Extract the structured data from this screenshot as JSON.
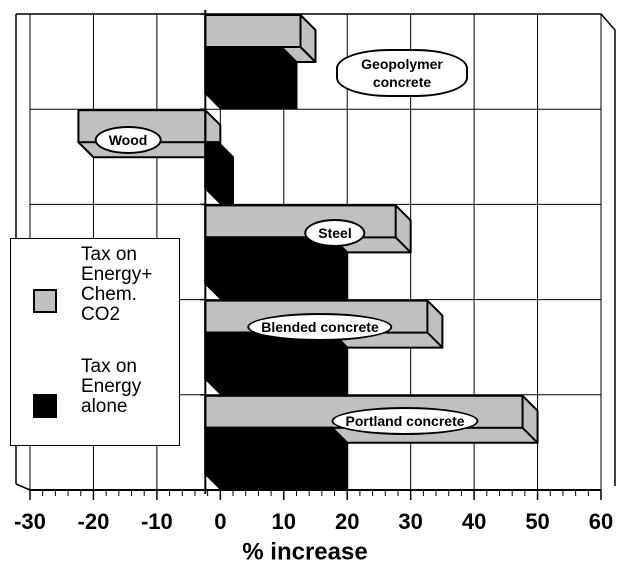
{
  "chart_data": {
    "type": "bar",
    "orientation": "horizontal",
    "categories": [
      "Geopolymer concrete",
      "Wood",
      "Steel",
      "Blended concrete",
      "Portland concrete"
    ],
    "series": [
      {
        "name": "Tax on Energy+ Chem. CO2",
        "color": "#c0c0c0",
        "values": [
          15,
          -20,
          30,
          35,
          50
        ]
      },
      {
        "name": "Tax on Energy alone",
        "color": "#000000",
        "values": [
          12,
          2,
          20,
          20,
          20
        ]
      }
    ],
    "xlabel": "% increase",
    "xlim": [
      -30,
      60
    ],
    "xticks": [
      -30,
      -20,
      -10,
      0,
      10,
      20,
      30,
      40,
      50,
      60
    ],
    "grid": true,
    "legend": "left"
  }
}
